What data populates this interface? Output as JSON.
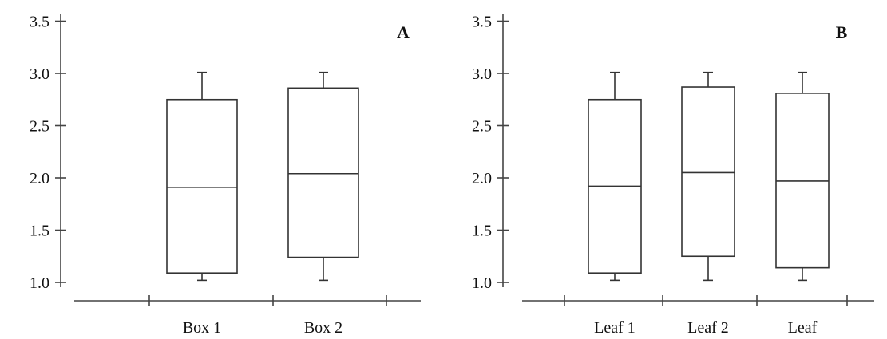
{
  "chart_data": [
    {
      "type": "box",
      "panel_label": "A",
      "categories": [
        "Box 1",
        "Box 2"
      ],
      "y_ticks": [
        "1.0",
        "1.5",
        "2.0",
        "2.5",
        "3.0",
        "3.5"
      ],
      "ylim": [
        1.0,
        3.5
      ],
      "grid": false,
      "boxes": [
        {
          "name": "Box 1",
          "min": 1.02,
          "q1": 1.09,
          "median": 1.91,
          "q3": 2.75,
          "max": 3.01
        },
        {
          "name": "Box 2",
          "min": 1.02,
          "q1": 1.24,
          "median": 2.04,
          "q3": 2.86,
          "max": 3.01
        }
      ]
    },
    {
      "type": "box",
      "panel_label": "B",
      "categories": [
        "Leaf 1",
        "Leaf 2",
        "Leaf"
      ],
      "y_ticks": [
        "1.0",
        "1.5",
        "2.0",
        "2.5",
        "3.0",
        "3.5"
      ],
      "ylim": [
        1.0,
        3.5
      ],
      "grid": false,
      "boxes": [
        {
          "name": "Leaf 1",
          "min": 1.02,
          "q1": 1.09,
          "median": 1.92,
          "q3": 2.75,
          "max": 3.01
        },
        {
          "name": "Leaf 2",
          "min": 1.02,
          "q1": 1.25,
          "median": 2.05,
          "q3": 2.87,
          "max": 3.01
        },
        {
          "name": "Leaf",
          "min": 1.02,
          "q1": 1.14,
          "median": 1.97,
          "q3": 2.81,
          "max": 3.01
        }
      ]
    }
  ]
}
